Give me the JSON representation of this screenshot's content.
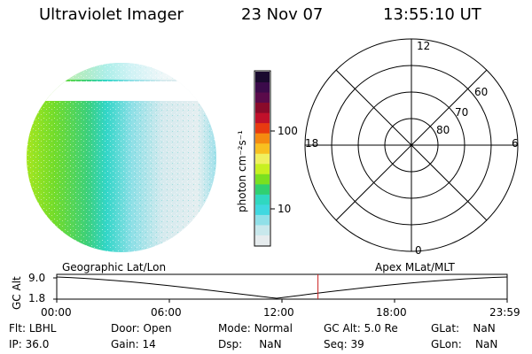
{
  "header": {
    "title": "Ultraviolet Imager",
    "date": "23 Nov 07",
    "time": "13:55:10 UT"
  },
  "colorbar": {
    "label": "photon cm⁻²s⁻¹",
    "ticks": [
      "100",
      "10"
    ],
    "colors": [
      "#1a0a2e",
      "#3b0a4a",
      "#5a0a4a",
      "#8a0a2a",
      "#c0102a",
      "#e83a10",
      "#f58a10",
      "#f8c020",
      "#f0f060",
      "#c8f020",
      "#7ae020",
      "#30d070",
      "#30d8c0",
      "#40d8e0",
      "#90e0e8",
      "#c8e8ec",
      "#e6ecee"
    ]
  },
  "polar_plot": {
    "mlt_labels": {
      "top": "12",
      "bottom": "0",
      "left": "18",
      "right": "6"
    },
    "lat_labels": [
      "60",
      "70",
      "80"
    ]
  },
  "timeline": {
    "left_label": "Geographic Lat/Lon",
    "right_label": "Apex MLat/MLT",
    "y_label": "GC Alt",
    "y_ticks": [
      "9.0",
      "1.8"
    ],
    "x_ticks": [
      "00:00",
      "06:00",
      "12:00",
      "18:00",
      "23:59"
    ],
    "marker_time": "13:55",
    "marker_color": "#cc2222"
  },
  "info": {
    "rows": [
      [
        {
          "label": "Flt:",
          "value": "LBHL"
        },
        {
          "label": "Door:",
          "value": "Open"
        },
        {
          "label": "Mode:",
          "value": "Normal"
        },
        {
          "label": "GC Alt:",
          "value": "5.0 Re"
        },
        {
          "label": "GLat:",
          "value": "NaN"
        }
      ],
      [
        {
          "label": "IP:",
          "value": "36.0"
        },
        {
          "label": "Gain:",
          "value": "14"
        },
        {
          "label": "Dsp:",
          "value": "NaN"
        },
        {
          "label": "Seq:",
          "value": "39"
        },
        {
          "label": "GLon:",
          "value": "NaN"
        }
      ]
    ]
  }
}
